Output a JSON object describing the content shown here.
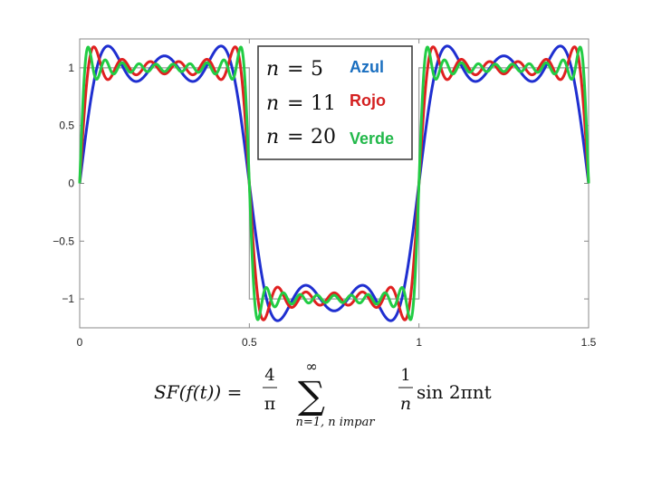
{
  "chart_data": {
    "type": "line",
    "title": "",
    "xlabel": "",
    "ylabel": "",
    "xlim": [
      0,
      1.5
    ],
    "ylim": [
      -1.25,
      1.25
    ],
    "x_ticks": [
      "0",
      "0.5",
      "1",
      "1.5"
    ],
    "y_ticks": [
      "1",
      "0.5",
      "0",
      "−0.5",
      "−1"
    ],
    "x_tick_values": [
      0,
      0.5,
      1,
      1.5
    ],
    "y_tick_values": [
      1,
      0.5,
      0,
      -0.5,
      -1
    ],
    "grid": false,
    "reference_square_wave": {
      "period": 1,
      "amplitude": 1,
      "color": "#9a9a9a"
    },
    "series": [
      {
        "name": "n = 5",
        "harmonics": 5,
        "color": "#1f2fd0",
        "label": "Azul",
        "label_color": "#1a6fc0"
      },
      {
        "name": "n = 11",
        "harmonics": 11,
        "color": "#e02020",
        "label": "Rojo",
        "label_color": "#d42020"
      },
      {
        "name": "n = 20",
        "harmonics": 20,
        "color": "#22cc44",
        "label": "Verde",
        "label_color": "#22b84a"
      }
    ],
    "legend_placement": "top-center"
  },
  "legend": {
    "entries": [
      {
        "math_lhs": "n",
        "math_eq": "=",
        "math_rhs": "5",
        "word": "Azul"
      },
      {
        "math_lhs": "n",
        "math_eq": "=",
        "math_rhs": "11",
        "word": "Rojo"
      },
      {
        "math_lhs": "n",
        "math_eq": "=",
        "math_rhs": "20",
        "word": "Verde"
      }
    ]
  },
  "formula": {
    "lhs": "SF(f(t)) =",
    "frac1_num": "4",
    "frac1_den": "π",
    "sum_symbol": "∑",
    "sum_upper": "∞",
    "sum_lower": "n=1, n impar",
    "frac2_num": "1",
    "frac2_den": "n",
    "tail": "sin 2πnt"
  }
}
